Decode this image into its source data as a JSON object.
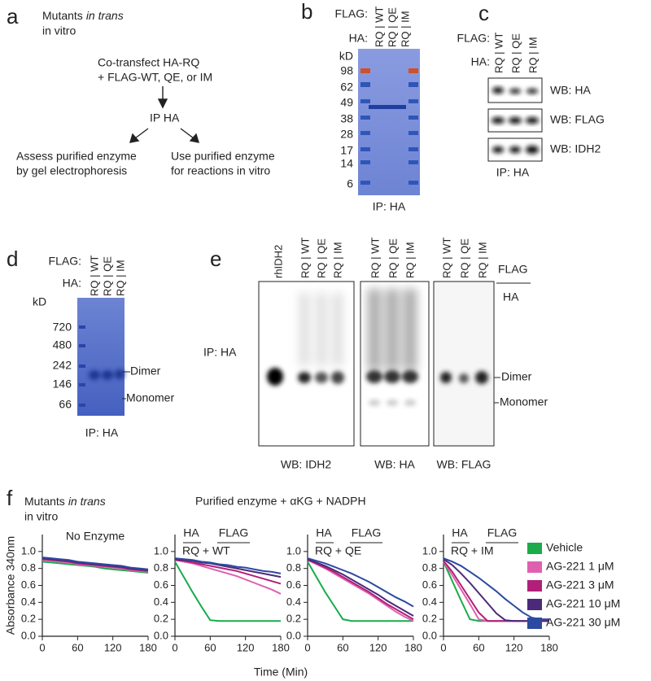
{
  "panel_a": {
    "label": "a",
    "title": "Mutants",
    "title_italic": "in trans",
    "title_line2": "in vitro",
    "step1": [
      "Co-transfect HA-RQ",
      "+ FLAG-WT, QE, or IM"
    ],
    "step2": "IP HA",
    "left": [
      "Assess purified enzyme",
      "by gel electrophoresis"
    ],
    "right": [
      "Use purified enzyme",
      "for reactions in vitro"
    ]
  },
  "panel_b": {
    "label": "b",
    "flag": "FLAG:",
    "ha": "HA:",
    "lanes": [
      "RQ | WT",
      "RQ | QE",
      "RQ | IM"
    ],
    "unit": "kD",
    "markers": [
      "98",
      "62",
      "49",
      "38",
      "28",
      "17",
      "14",
      "6"
    ],
    "caption": "IP: HA"
  },
  "panel_c": {
    "label": "c",
    "flag": "FLAG:",
    "ha": "HA:",
    "lanes": [
      "RQ | WT",
      "RQ | QE",
      "RQ | IM"
    ],
    "blots": [
      "WB: HA",
      "WB: FLAG",
      "WB: IDH2"
    ],
    "caption": "IP: HA"
  },
  "panel_d": {
    "label": "d",
    "flag": "FLAG:",
    "ha": "HA:",
    "lanes": [
      "RQ | WT",
      "RQ | QE",
      "RQ | IM"
    ],
    "unit": "kD",
    "markers": [
      "720",
      "480",
      "242",
      "146",
      "66"
    ],
    "dimer": "Dimer",
    "monomer": "Monomer",
    "caption": "IP: HA"
  },
  "panel_e": {
    "label": "e",
    "lanes": [
      "rhIDH2",
      "RQ | WT",
      "RQ | QE",
      "RQ | IM",
      "RQ | WT",
      "RQ | QE",
      "RQ | IM",
      "RQ | WT",
      "RQ | QE",
      "RQ | IM"
    ],
    "flag": "FLAG",
    "ha": "HA",
    "side": "IP: HA",
    "dimer": "Dimer",
    "monomer": "Monomer",
    "blots": [
      "WB: IDH2",
      "WB: HA",
      "WB: FLAG"
    ]
  },
  "panel_f": {
    "label": "f",
    "title": "Mutants",
    "title_italic": "in trans",
    "title_line2": "in vitro",
    "subtitle": "Purified enzyme + αKG + NADPH",
    "xlabel": "Time (Min)"
  },
  "chart_data": [
    {
      "type": "line",
      "title": "No Enzyme",
      "ylabel": "Absorbance 340nm",
      "x": [
        0,
        15,
        30,
        45,
        60,
        75,
        90,
        105,
        120,
        135,
        150,
        165,
        180
      ],
      "xlim": [
        0,
        180
      ],
      "xticks": [
        0,
        60,
        120,
        180
      ],
      "ylim": [
        0,
        1.2
      ],
      "yticks": [
        {
          "value": 0,
          "label": "0.0"
        },
        0.2,
        0.4,
        0.6,
        0.8,
        {
          "value": 1,
          "label": "1.0"
        }
      ],
      "series": [
        {
          "color": "#1aab4b",
          "values": [
            0.88,
            0.87,
            0.86,
            0.85,
            0.84,
            0.83,
            0.82,
            0.8,
            0.79,
            0.78,
            0.77,
            0.76,
            0.75
          ]
        },
        {
          "color": "#e060b0",
          "values": [
            0.9,
            0.89,
            0.88,
            0.87,
            0.85,
            0.84,
            0.83,
            0.82,
            0.81,
            0.8,
            0.78,
            0.77,
            0.76
          ]
        },
        {
          "color": "#b0207a",
          "values": [
            0.91,
            0.9,
            0.89,
            0.88,
            0.86,
            0.85,
            0.84,
            0.83,
            0.82,
            0.81,
            0.79,
            0.78,
            0.77
          ]
        },
        {
          "color": "#4b2a7a",
          "values": [
            0.92,
            0.91,
            0.9,
            0.89,
            0.87,
            0.86,
            0.85,
            0.84,
            0.83,
            0.82,
            0.8,
            0.79,
            0.78
          ]
        },
        {
          "color": "#2c4aa0",
          "values": [
            0.93,
            0.92,
            0.91,
            0.9,
            0.88,
            0.87,
            0.86,
            0.85,
            0.84,
            0.83,
            0.81,
            0.8,
            0.79
          ]
        }
      ]
    },
    {
      "type": "line",
      "ha": "HA",
      "flag": "FLAG",
      "pair": "RQ + WT",
      "x": [
        0,
        15,
        30,
        45,
        60,
        75,
        90,
        105,
        120,
        135,
        150,
        165,
        180
      ],
      "xlim": [
        0,
        180
      ],
      "xticks": [
        0,
        60,
        120,
        180
      ],
      "ylim": [
        0,
        1.2
      ],
      "yticks": [
        {
          "value": 0,
          "label": "0.0"
        },
        0.2,
        0.4,
        0.6,
        0.8,
        {
          "value": 1,
          "label": "1.0"
        }
      ],
      "series": [
        {
          "color": "#1aab4b",
          "values": [
            0.88,
            0.7,
            0.52,
            0.35,
            0.19,
            0.18,
            0.18,
            0.18,
            0.18,
            0.18,
            0.18,
            0.18,
            0.18
          ]
        },
        {
          "color": "#e060b0",
          "values": [
            0.9,
            0.88,
            0.86,
            0.83,
            0.8,
            0.77,
            0.74,
            0.71,
            0.67,
            0.63,
            0.59,
            0.55,
            0.5
          ]
        },
        {
          "color": "#b0207a",
          "values": [
            0.9,
            0.89,
            0.87,
            0.85,
            0.83,
            0.81,
            0.79,
            0.77,
            0.74,
            0.71,
            0.68,
            0.65,
            0.62
          ]
        },
        {
          "color": "#4b2a7a",
          "values": [
            0.91,
            0.9,
            0.89,
            0.87,
            0.86,
            0.84,
            0.82,
            0.8,
            0.78,
            0.76,
            0.74,
            0.72,
            0.7
          ]
        },
        {
          "color": "#2c4aa0",
          "values": [
            0.92,
            0.91,
            0.9,
            0.88,
            0.87,
            0.85,
            0.84,
            0.82,
            0.81,
            0.79,
            0.77,
            0.76,
            0.74
          ]
        }
      ]
    },
    {
      "type": "line",
      "ha": "HA",
      "flag": "FLAG",
      "pair": "RQ + QE",
      "x": [
        0,
        15,
        30,
        45,
        60,
        75,
        90,
        105,
        120,
        135,
        150,
        165,
        180
      ],
      "xlim": [
        0,
        180
      ],
      "xticks": [
        0,
        60,
        120,
        180
      ],
      "ylim": [
        0,
        1.2
      ],
      "yticks": [
        {
          "value": 0,
          "label": "0.0"
        },
        0.2,
        0.4,
        0.6,
        0.8,
        {
          "value": 1,
          "label": "1.0"
        }
      ],
      "series": [
        {
          "color": "#1aab4b",
          "values": [
            0.88,
            0.7,
            0.52,
            0.36,
            0.2,
            0.18,
            0.18,
            0.18,
            0.18,
            0.18,
            0.18,
            0.18,
            0.18
          ]
        },
        {
          "color": "#e060b0",
          "values": [
            0.9,
            0.85,
            0.8,
            0.74,
            0.68,
            0.62,
            0.56,
            0.5,
            0.43,
            0.36,
            0.29,
            0.23,
            0.18
          ]
        },
        {
          "color": "#b0207a",
          "values": [
            0.9,
            0.86,
            0.81,
            0.76,
            0.7,
            0.64,
            0.58,
            0.52,
            0.45,
            0.38,
            0.32,
            0.26,
            0.2
          ]
        },
        {
          "color": "#4b2a7a",
          "values": [
            0.91,
            0.87,
            0.83,
            0.78,
            0.73,
            0.67,
            0.61,
            0.55,
            0.49,
            0.42,
            0.36,
            0.3,
            0.24
          ]
        },
        {
          "color": "#2c4aa0",
          "values": [
            0.92,
            0.89,
            0.86,
            0.82,
            0.78,
            0.74,
            0.69,
            0.64,
            0.58,
            0.52,
            0.46,
            0.41,
            0.35
          ]
        }
      ]
    },
    {
      "type": "line",
      "ha": "HA",
      "flag": "FLAG",
      "pair": "RQ + IM",
      "legend": "right",
      "x": [
        0,
        15,
        30,
        45,
        60,
        75,
        90,
        105,
        120,
        135,
        150,
        165,
        180
      ],
      "xlim": [
        0,
        180
      ],
      "xticks": [
        0,
        60,
        120,
        180
      ],
      "ylim": [
        0,
        1.2
      ],
      "yticks": [
        {
          "value": 0,
          "label": "0.0"
        },
        0.2,
        0.4,
        0.6,
        0.8,
        {
          "value": 1,
          "label": "1.0"
        }
      ],
      "series": [
        {
          "name": "Vehicle",
          "color": "#1aab4b",
          "values": [
            0.88,
            0.65,
            0.42,
            0.2,
            0.18,
            0.18,
            0.18,
            0.18,
            0.18,
            0.18,
            0.18,
            0.18,
            0.18
          ]
        },
        {
          "name": "AG-221 1 μM",
          "color": "#e060b0",
          "values": [
            0.88,
            0.72,
            0.55,
            0.38,
            0.2,
            0.18,
            0.18,
            0.18,
            0.18,
            0.18,
            0.18,
            0.18,
            0.18
          ]
        },
        {
          "name": "AG-221 3 μM",
          "color": "#b0207a",
          "values": [
            0.89,
            0.76,
            0.6,
            0.44,
            0.28,
            0.18,
            0.18,
            0.18,
            0.18,
            0.18,
            0.18,
            0.18,
            0.18
          ]
        },
        {
          "name": "AG-221 10 μM",
          "color": "#4b2a7a",
          "values": [
            0.91,
            0.84,
            0.74,
            0.63,
            0.51,
            0.39,
            0.27,
            0.19,
            0.18,
            0.18,
            0.18,
            0.18,
            0.18
          ]
        },
        {
          "name": "AG-221 30 μM",
          "color": "#2c4aa0",
          "values": [
            0.92,
            0.88,
            0.83,
            0.76,
            0.69,
            0.61,
            0.53,
            0.44,
            0.36,
            0.28,
            0.22,
            0.2,
            0.2
          ]
        }
      ]
    }
  ]
}
